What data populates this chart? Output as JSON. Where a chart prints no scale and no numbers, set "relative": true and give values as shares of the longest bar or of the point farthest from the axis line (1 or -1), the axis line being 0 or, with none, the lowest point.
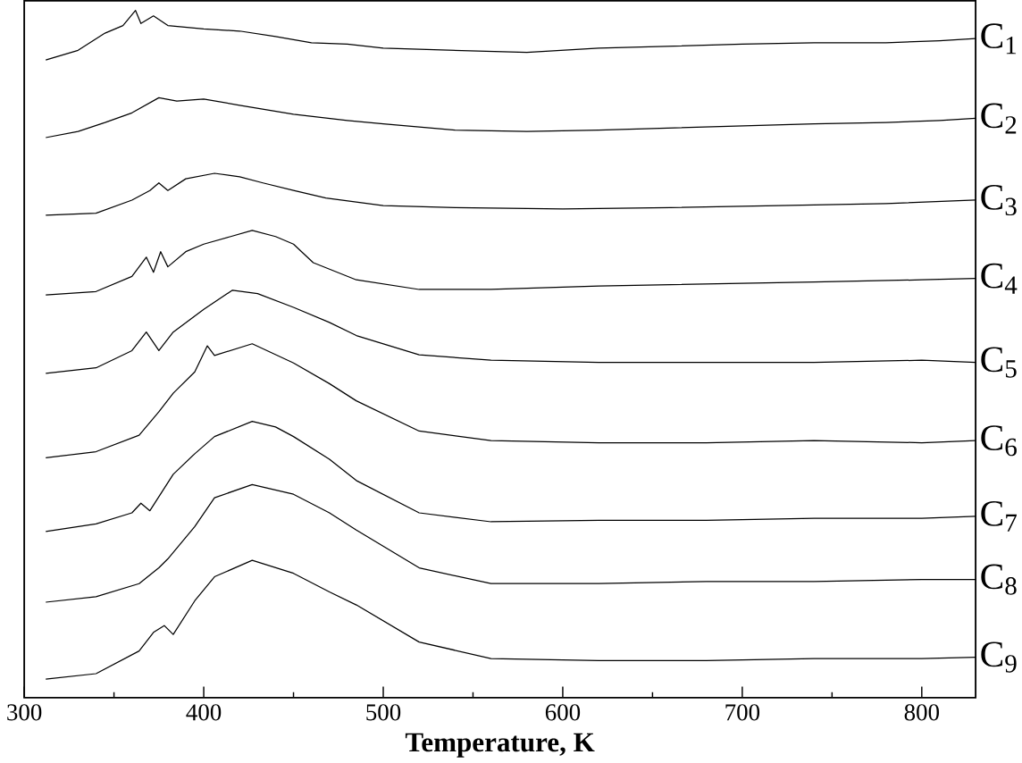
{
  "chart_data": {
    "type": "line",
    "relative": true,
    "xlabel": "**Temperature, K**",
    "xlim": [
      300,
      830
    ],
    "xticks": [
      300,
      400,
      500,
      600,
      700,
      800
    ],
    "marker": "none",
    "series": [
      {
        "name": "C$_{1}$",
        "color": "#000000",
        "x": [
          312,
          330,
          345,
          355,
          362,
          365,
          372,
          380,
          400,
          420,
          440,
          460,
          480,
          500,
          540,
          580,
          620,
          660,
          700,
          740,
          780,
          810,
          830
        ],
        "values": [
          0.928,
          0.942,
          0.967,
          0.978,
          1.0,
          0.981,
          0.992,
          0.978,
          0.973,
          0.97,
          0.962,
          0.953,
          0.951,
          0.945,
          0.942,
          0.939,
          0.945,
          0.948,
          0.951,
          0.953,
          0.953,
          0.956,
          0.959
        ]
      },
      {
        "name": "C$_{2}$",
        "color": "#000000",
        "x": [
          312,
          330,
          345,
          360,
          375,
          385,
          400,
          420,
          450,
          480,
          500,
          540,
          580,
          620,
          660,
          700,
          740,
          780,
          810,
          830
        ],
        "values": [
          0.815,
          0.824,
          0.837,
          0.851,
          0.873,
          0.868,
          0.871,
          0.862,
          0.849,
          0.84,
          0.835,
          0.826,
          0.824,
          0.826,
          0.829,
          0.832,
          0.835,
          0.837,
          0.84,
          0.843
        ]
      },
      {
        "name": "C$_{3}$",
        "color": "#000000",
        "x": [
          312,
          340,
          360,
          370,
          375,
          380,
          390,
          406,
          420,
          433,
          450,
          468,
          500,
          540,
          600,
          660,
          720,
          780,
          830
        ],
        "values": [
          0.702,
          0.705,
          0.724,
          0.738,
          0.749,
          0.738,
          0.755,
          0.763,
          0.758,
          0.749,
          0.738,
          0.727,
          0.716,
          0.713,
          0.711,
          0.713,
          0.716,
          0.719,
          0.724
        ]
      },
      {
        "name": "C$_{4}$",
        "color": "#000000",
        "x": [
          312,
          340,
          360,
          368,
          372,
          376,
          380,
          390,
          400,
          415,
          427,
          440,
          450,
          461,
          485,
          520,
          560,
          620,
          680,
          740,
          800,
          830
        ],
        "values": [
          0.586,
          0.591,
          0.613,
          0.641,
          0.619,
          0.649,
          0.627,
          0.649,
          0.66,
          0.671,
          0.68,
          0.671,
          0.66,
          0.633,
          0.608,
          0.594,
          0.594,
          0.599,
          0.602,
          0.605,
          0.608,
          0.61
        ]
      },
      {
        "name": "C$_{5}$",
        "color": "#000000",
        "x": [
          312,
          340,
          360,
          368,
          375,
          383,
          400,
          416,
          430,
          450,
          470,
          485,
          520,
          560,
          620,
          680,
          740,
          800,
          830
        ],
        "values": [
          0.472,
          0.48,
          0.505,
          0.532,
          0.505,
          0.532,
          0.565,
          0.593,
          0.588,
          0.568,
          0.546,
          0.527,
          0.499,
          0.491,
          0.488,
          0.488,
          0.488,
          0.491,
          0.488
        ]
      },
      {
        "name": "C$_{6}$",
        "color": "#000000",
        "x": [
          312,
          340,
          364,
          375,
          383,
          395,
          402,
          406,
          427,
          450,
          470,
          485,
          520,
          560,
          620,
          680,
          740,
          800,
          830
        ],
        "values": [
          0.349,
          0.358,
          0.382,
          0.416,
          0.443,
          0.474,
          0.512,
          0.498,
          0.515,
          0.487,
          0.457,
          0.432,
          0.388,
          0.374,
          0.371,
          0.371,
          0.374,
          0.371,
          0.374
        ]
      },
      {
        "name": "C$_{7}$",
        "color": "#000000",
        "x": [
          312,
          340,
          360,
          365,
          370,
          383,
          395,
          406,
          427,
          440,
          450,
          470,
          485,
          520,
          560,
          620,
          680,
          740,
          800,
          830
        ],
        "values": [
          0.242,
          0.253,
          0.269,
          0.283,
          0.272,
          0.325,
          0.355,
          0.38,
          0.402,
          0.394,
          0.38,
          0.347,
          0.316,
          0.269,
          0.256,
          0.258,
          0.258,
          0.261,
          0.261,
          0.264
        ]
      },
      {
        "name": "C$_{8}$",
        "color": "#000000",
        "x": [
          312,
          340,
          364,
          375,
          380,
          395,
          406,
          427,
          450,
          470,
          485,
          520,
          560,
          620,
          680,
          740,
          800,
          830
        ],
        "values": [
          0.139,
          0.147,
          0.166,
          0.189,
          0.202,
          0.249,
          0.291,
          0.31,
          0.296,
          0.269,
          0.244,
          0.189,
          0.166,
          0.166,
          0.169,
          0.169,
          0.172,
          0.172
        ]
      },
      {
        "name": "C$_{9}$",
        "color": "#000000",
        "x": [
          312,
          340,
          364,
          372,
          378,
          383,
          395,
          406,
          427,
          450,
          470,
          485,
          520,
          560,
          620,
          680,
          740,
          800,
          830
        ],
        "values": [
          0.027,
          0.035,
          0.068,
          0.095,
          0.105,
          0.092,
          0.141,
          0.176,
          0.2,
          0.181,
          0.154,
          0.135,
          0.081,
          0.057,
          0.054,
          0.054,
          0.057,
          0.057,
          0.059
        ]
      }
    ]
  }
}
